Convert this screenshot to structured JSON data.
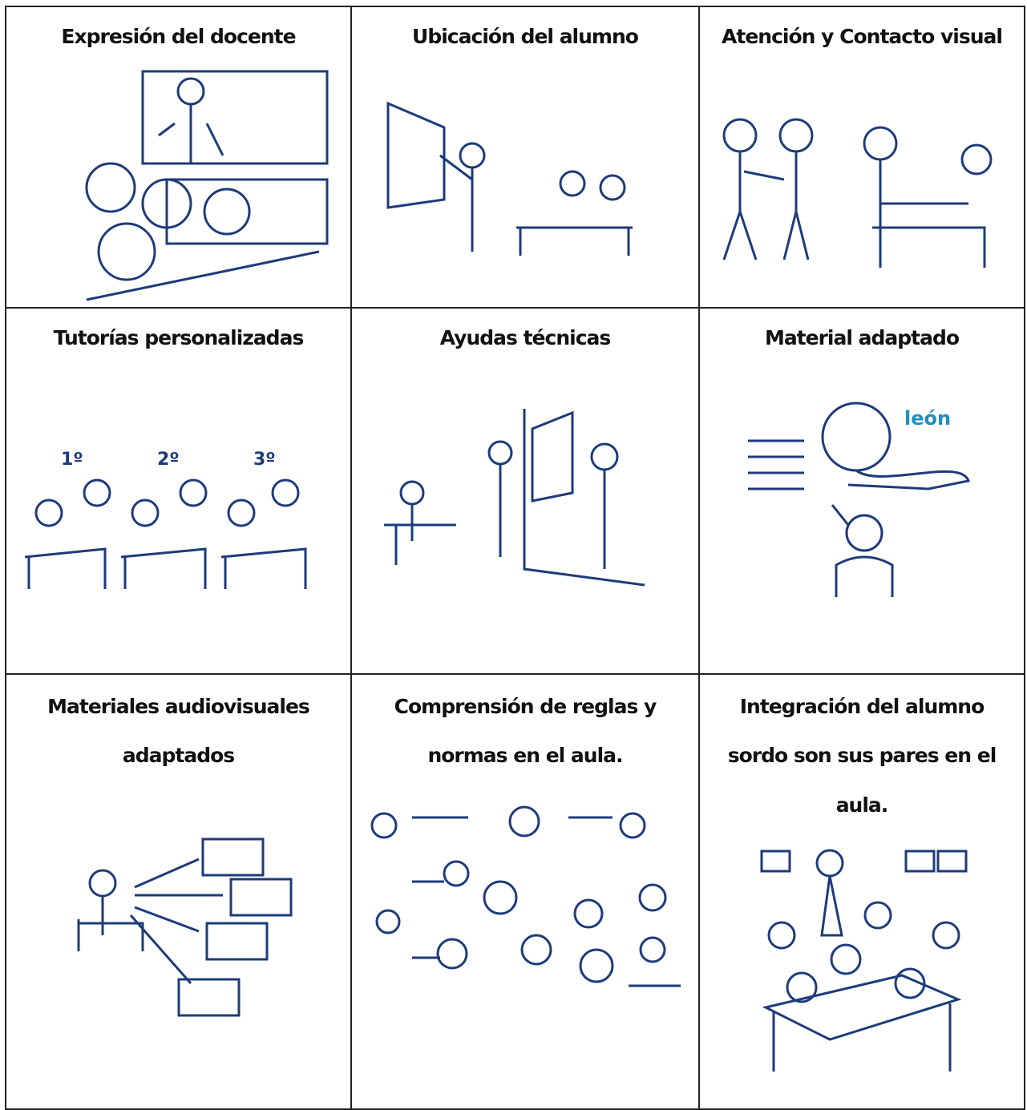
{
  "table": {
    "cells": [
      {
        "lines": [
          "Expresión del docente"
        ]
      },
      {
        "lines": [
          "Ubicación del alumno"
        ]
      },
      {
        "lines": [
          "Atención y Contacto visual"
        ]
      },
      {
        "lines": [
          "Tutorías personalizadas"
        ],
        "labels": [
          "1º",
          "2º",
          "3º"
        ]
      },
      {
        "lines": [
          "Ayudas técnicas"
        ]
      },
      {
        "lines": [
          "Material adaptado"
        ],
        "labels": [
          "león"
        ]
      },
      {
        "lines": [
          "Materiales audiovisuales",
          "adaptados"
        ]
      },
      {
        "lines": [
          "Comprensión de reglas y",
          "normas en el aula."
        ]
      },
      {
        "lines": [
          "Integración del alumno",
          "sordo son sus pares en el",
          "aula."
        ]
      }
    ]
  }
}
